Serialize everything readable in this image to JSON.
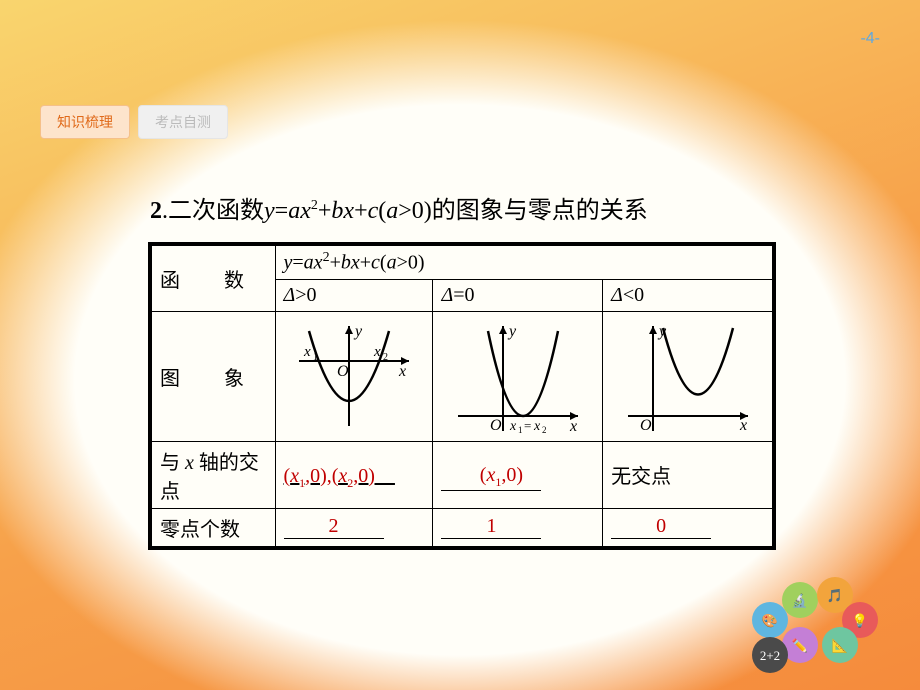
{
  "page_number": "-4-",
  "tabs": {
    "active": "知识梳理",
    "inactive": "考点自测"
  },
  "heading": {
    "num": "2",
    "prefix": ".二次函数",
    "formula": {
      "y": "y",
      "eq": "=",
      "a": "a",
      "x": "x",
      "sq": "2",
      "plus1": "+",
      "b": "b",
      "x2": "x",
      "plus2": "+",
      "c": "c",
      "cond": "(a>0)"
    },
    "suffix": "的图象与零点的关系"
  },
  "table": {
    "row1_label": "函　数",
    "row1_formula": "y=ax²+bx+c(a>0)",
    "delta_gt": "Δ>0",
    "delta_eq": "Δ=0",
    "delta_lt": "Δ<0",
    "row_image_label": "图　象",
    "row_intersect_label": "与 x 轴的交点",
    "intersect_gt": "(x₁,0),(x₂,0)",
    "intersect_eq": "(x₁,0)",
    "intersect_lt": "无交点",
    "row_count_label": "零点个数",
    "count_gt": "2",
    "count_eq": "1",
    "count_lt": "0"
  },
  "colors": {
    "bg_grad_start": "#f9d56e",
    "bg_grad_mid": "#f7a14a",
    "bg_grad_end": "#f58b3c",
    "inner_bg": "#fffef8",
    "tab_active_bg": "#fde4cc",
    "tab_active_fg": "#e06a1a",
    "tab_inactive_bg": "#f0f0f0",
    "tab_inactive_fg": "#bbbbbb",
    "page_num": "#5fa8e0",
    "answer": "#c00000",
    "border": "#000000"
  },
  "graphs": {
    "axis_label_y": "y",
    "axis_label_x": "x",
    "origin": "O",
    "x1": "x₁",
    "x2": "x₂",
    "x1eq": "x₁=x₂"
  },
  "decor_icons": {
    "items": [
      {
        "glyph": "🎨",
        "bg": "#5fb6e0"
      },
      {
        "glyph": "🔬",
        "bg": "#a0d05e"
      },
      {
        "glyph": "🎵",
        "bg": "#f2a43c"
      },
      {
        "glyph": "💡",
        "bg": "#e85a5a"
      },
      {
        "glyph": "📐",
        "bg": "#6ec6a0"
      },
      {
        "glyph": "✏️",
        "bg": "#c47fd6"
      },
      {
        "glyph": "2+2",
        "bg": "#4a4a4a"
      }
    ]
  }
}
